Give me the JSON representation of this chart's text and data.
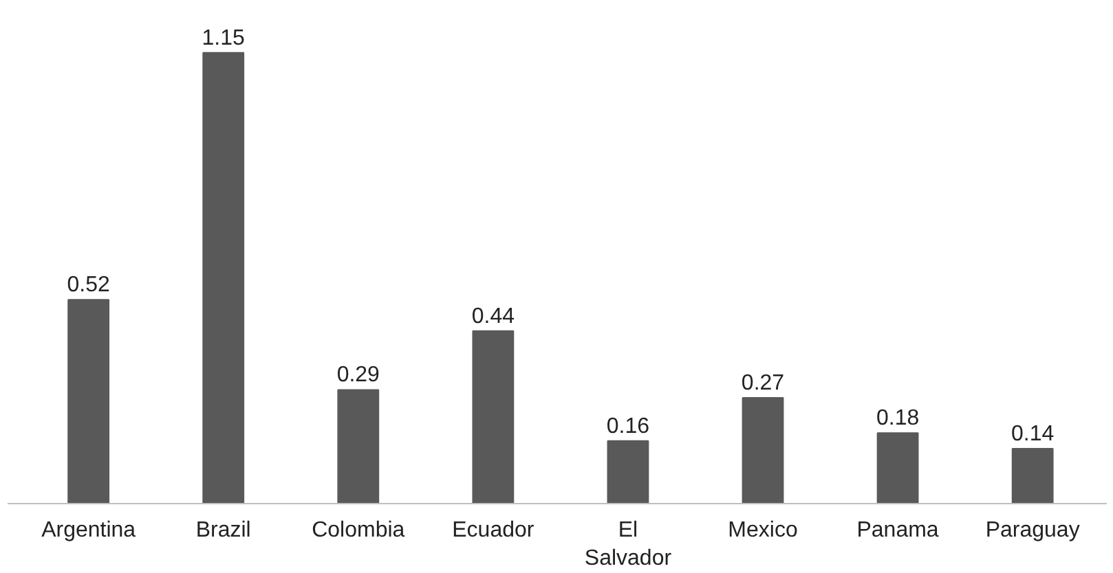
{
  "chart_data": {
    "type": "bar",
    "categories": [
      "Argentina",
      "Brazil",
      "Colombia",
      "Ecuador",
      "El Salvador",
      "Mexico",
      "Panama",
      "Paraguay"
    ],
    "values": [
      0.52,
      1.15,
      0.29,
      0.44,
      0.16,
      0.27,
      0.18,
      0.14
    ],
    "color": "#595959",
    "data_labels": true
  }
}
